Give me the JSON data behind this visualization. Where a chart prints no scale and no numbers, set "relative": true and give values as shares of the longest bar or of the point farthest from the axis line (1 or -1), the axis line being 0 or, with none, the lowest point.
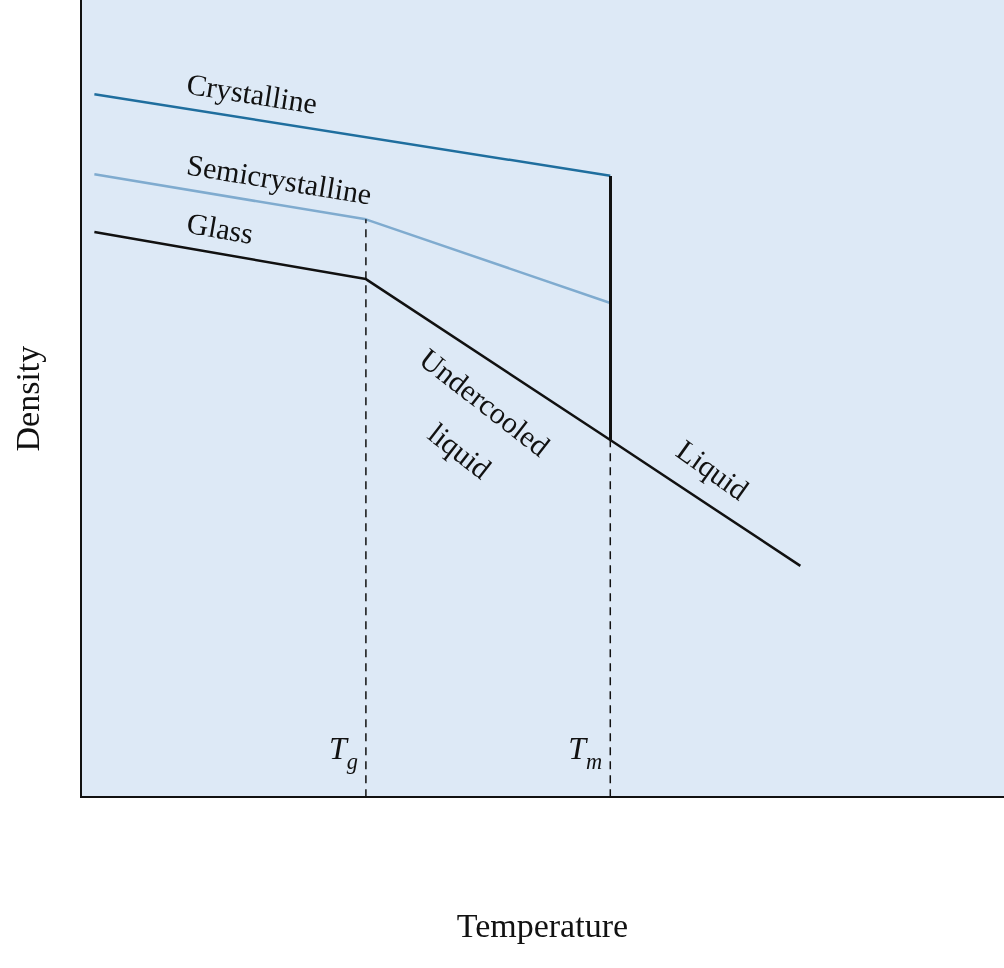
{
  "chart_data": {
    "type": "line",
    "relative": true,
    "xlabel": "Temperature",
    "ylabel": "Density",
    "legend": false,
    "marker": "none",
    "categories": [
      null,
      null,
      null,
      null,
      null,
      null,
      null,
      null,
      null,
      null,
      null,
      null,
      null,
      null,
      null,
      null,
      null,
      null,
      null,
      null,
      null,
      null,
      null,
      null,
      null,
      null,
      null,
      null,
      null,
      null,
      null,
      null,
      null,
      null
    ],
    "series": [
      {
        "name": "Crystalline",
        "color": "#1f6e9e",
        "values": [
          1.0,
          null,
          null,
          null,
          null,
          null,
          null,
          null,
          null,
          null,
          null,
          null,
          null,
          null,
          null,
          null,
          null,
          null,
          null,
          0.884,
          null,
          null,
          null,
          null,
          null,
          null,
          null,
          null,
          null,
          null,
          null,
          null,
          null,
          null
        ]
      },
      {
        "name": "Semicrystalline",
        "color": "#7fabcf",
        "values": [
          0.886,
          null,
          null,
          null,
          null,
          null,
          null,
          null,
          null,
          null,
          0.822,
          null,
          null,
          null,
          null,
          null,
          null,
          null,
          null,
          0.703,
          null,
          null,
          null,
          null,
          null,
          null,
          null,
          null,
          null,
          null,
          null,
          null,
          null,
          null
        ]
      },
      {
        "name": "Glass",
        "color": "#111111",
        "values": [
          0.804,
          null,
          null,
          null,
          null,
          null,
          null,
          null,
          null,
          null,
          0.737,
          null,
          null,
          null,
          null,
          null,
          null,
          null,
          null,
          0.508,
          null,
          null,
          null,
          null,
          null,
          null,
          0.329,
          null,
          null,
          null,
          null,
          null,
          null,
          null
        ]
      }
    ],
    "annotations": [
      "Undercooled",
      "liquid",
      "Liquid",
      "T$_{g}$",
      "T$_{m}$"
    ]
  }
}
